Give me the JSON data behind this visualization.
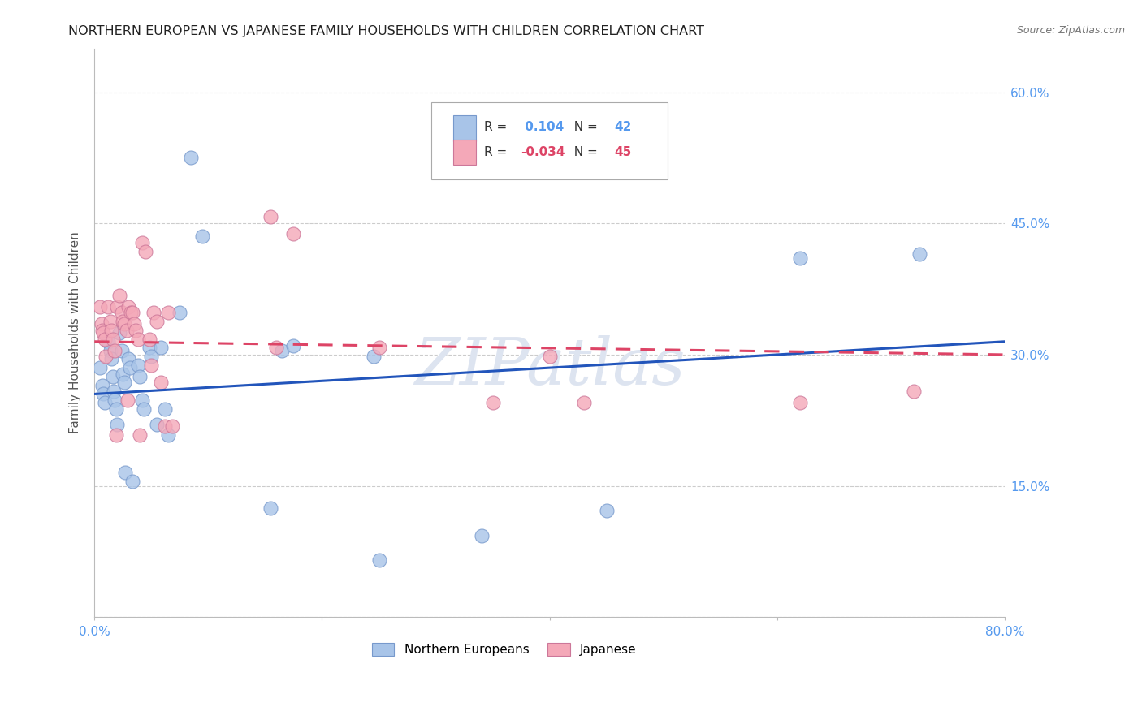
{
  "title": "NORTHERN EUROPEAN VS JAPANESE FAMILY HOUSEHOLDS WITH CHILDREN CORRELATION CHART",
  "source": "Source: ZipAtlas.com",
  "ylabel": "Family Households with Children",
  "xlim": [
    0.0,
    0.8
  ],
  "ylim": [
    0.0,
    0.65
  ],
  "yticks": [
    0.0,
    0.15,
    0.3,
    0.45,
    0.6
  ],
  "blue_R": 0.104,
  "blue_N": 42,
  "pink_R": -0.034,
  "pink_N": 45,
  "blue_color": "#a8c4e8",
  "pink_color": "#f4a8b8",
  "blue_line_color": "#2255bb",
  "pink_line_color": "#dd4466",
  "watermark": "ZIPatlas",
  "watermark_color": "#dde4f0",
  "background_color": "#ffffff",
  "grid_color": "#cccccc",
  "title_color": "#222222",
  "axis_label_color": "#555555",
  "tick_color": "#5599ee",
  "legend_label_blue": "Northern Europeans",
  "legend_label_pink": "Japanese",
  "blue_line_start_y": 0.255,
  "blue_line_end_y": 0.315,
  "pink_line_start_y": 0.315,
  "pink_line_end_y": 0.3,
  "blue_x": [
    0.005,
    0.007,
    0.008,
    0.009,
    0.012,
    0.014,
    0.015,
    0.016,
    0.017,
    0.018,
    0.019,
    0.02,
    0.022,
    0.024,
    0.025,
    0.026,
    0.027,
    0.03,
    0.031,
    0.033,
    0.038,
    0.04,
    0.042,
    0.043,
    0.048,
    0.05,
    0.055,
    0.058,
    0.062,
    0.065,
    0.075,
    0.085,
    0.095,
    0.155,
    0.165,
    0.175,
    0.245,
    0.25,
    0.34,
    0.45,
    0.62,
    0.725
  ],
  "blue_y": [
    0.285,
    0.265,
    0.255,
    0.245,
    0.315,
    0.305,
    0.295,
    0.275,
    0.258,
    0.248,
    0.238,
    0.22,
    0.325,
    0.305,
    0.278,
    0.268,
    0.165,
    0.295,
    0.285,
    0.155,
    0.288,
    0.275,
    0.248,
    0.238,
    0.308,
    0.298,
    0.22,
    0.308,
    0.238,
    0.208,
    0.348,
    0.525,
    0.435,
    0.125,
    0.305,
    0.31,
    0.298,
    0.065,
    0.093,
    0.122,
    0.41,
    0.415
  ],
  "pink_x": [
    0.005,
    0.006,
    0.007,
    0.008,
    0.009,
    0.01,
    0.012,
    0.014,
    0.015,
    0.016,
    0.018,
    0.019,
    0.02,
    0.022,
    0.024,
    0.025,
    0.026,
    0.028,
    0.029,
    0.03,
    0.032,
    0.033,
    0.035,
    0.036,
    0.038,
    0.04,
    0.042,
    0.045,
    0.048,
    0.05,
    0.052,
    0.055,
    0.058,
    0.062,
    0.065,
    0.068,
    0.155,
    0.16,
    0.175,
    0.25,
    0.35,
    0.4,
    0.43,
    0.62,
    0.72
  ],
  "pink_y": [
    0.355,
    0.335,
    0.328,
    0.325,
    0.318,
    0.298,
    0.355,
    0.338,
    0.328,
    0.318,
    0.305,
    0.208,
    0.355,
    0.368,
    0.348,
    0.338,
    0.335,
    0.328,
    0.248,
    0.355,
    0.348,
    0.348,
    0.335,
    0.328,
    0.318,
    0.208,
    0.428,
    0.418,
    0.318,
    0.288,
    0.348,
    0.338,
    0.268,
    0.218,
    0.348,
    0.218,
    0.458,
    0.308,
    0.438,
    0.308,
    0.245,
    0.298,
    0.245,
    0.245,
    0.258
  ]
}
